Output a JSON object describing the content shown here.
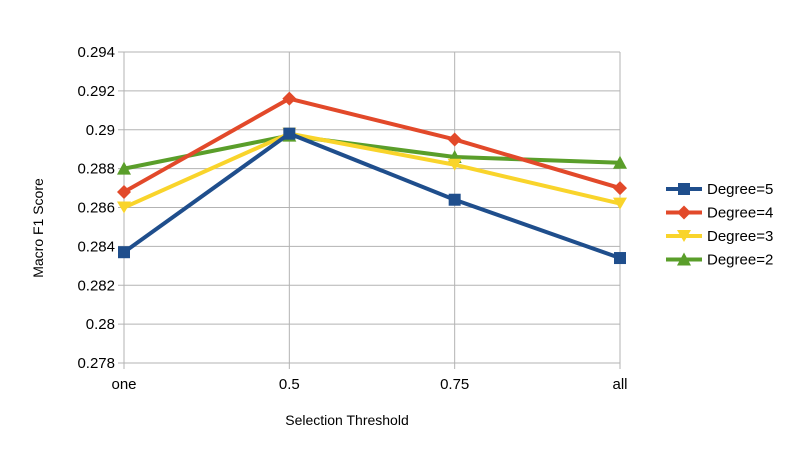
{
  "chart_data": {
    "type": "line",
    "title": "",
    "xlabel": "Selection Threshold",
    "ylabel": "Macro F1 Score",
    "categories": [
      "one",
      "0.5",
      "0.75",
      "all"
    ],
    "ylim": [
      0.278,
      0.294
    ],
    "yticks": [
      "0.278",
      "0.28",
      "0.282",
      "0.284",
      "0.286",
      "0.288",
      "0.29",
      "0.292",
      "0.294"
    ],
    "grid": true,
    "legend_position": "right",
    "series": [
      {
        "name": "Degree=5",
        "values": [
          0.2837,
          0.2898,
          0.2864,
          0.2834
        ],
        "color": "#1f4e8c",
        "marker": "square"
      },
      {
        "name": "Degree=4",
        "values": [
          0.2868,
          0.2916,
          0.2895,
          0.287
        ],
        "color": "#e2492a",
        "marker": "diamond"
      },
      {
        "name": "Degree=3",
        "values": [
          0.286,
          0.2898,
          0.2882,
          0.2862
        ],
        "color": "#f9d42b",
        "marker": "triangle-down"
      },
      {
        "name": "Degree=2",
        "values": [
          0.288,
          0.2897,
          0.2886,
          0.2883
        ],
        "color": "#5a9e2a",
        "marker": "triangle-up"
      }
    ]
  }
}
